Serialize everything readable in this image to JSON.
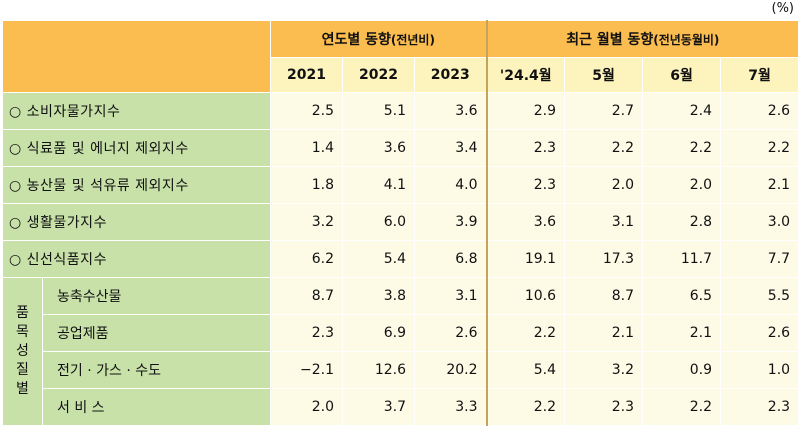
{
  "unit": "(%)",
  "headers": {
    "annual_title": "연도별 동향",
    "annual_sub": "(전년비)",
    "monthly_title": "최근 월별 동향",
    "monthly_sub": "(전년동월비)",
    "columns": [
      "2021",
      "2022",
      "2023",
      "'24.4월",
      "5월",
      "6월",
      "7월"
    ]
  },
  "rows": [
    {
      "label": "○ 소비자물가지수",
      "values": [
        "2.5",
        "5.1",
        "3.6",
        "2.9",
        "2.7",
        "2.4",
        "2.6"
      ]
    },
    {
      "label": "○ 식료품 및 에너지 제외지수",
      "values": [
        "1.4",
        "3.6",
        "3.4",
        "2.3",
        "2.2",
        "2.2",
        "2.2"
      ]
    },
    {
      "label": "○ 농산물 및 석유류 제외지수",
      "values": [
        "1.8",
        "4.1",
        "4.0",
        "2.3",
        "2.0",
        "2.0",
        "2.1"
      ]
    },
    {
      "label": "○ 생활물가지수",
      "values": [
        "3.2",
        "6.0",
        "3.9",
        "3.6",
        "3.1",
        "2.8",
        "3.0"
      ]
    },
    {
      "label": "○ 신선식품지수",
      "values": [
        "6.2",
        "5.4",
        "6.8",
        "19.1",
        "17.3",
        "11.7",
        "7.7"
      ]
    }
  ],
  "group": {
    "label_chars": [
      "품",
      "목",
      "성",
      "질",
      "별"
    ],
    "rows": [
      {
        "label": "농축수산물",
        "values": [
          "8.7",
          "3.8",
          "3.1",
          "10.6",
          "8.7",
          "6.5",
          "5.5"
        ]
      },
      {
        "label": "공업제품",
        "values": [
          "2.3",
          "6.9",
          "2.6",
          "2.2",
          "2.1",
          "2.1",
          "2.6"
        ]
      },
      {
        "label": "전기 · 가스 · 수도",
        "values": [
          "−2.1",
          "12.6",
          "20.2",
          "5.4",
          "3.2",
          "0.9",
          "1.0"
        ]
      },
      {
        "label": "서 비 스",
        "values": [
          "2.0",
          "3.7",
          "3.3",
          "2.2",
          "2.3",
          "2.2",
          "2.3"
        ]
      }
    ]
  }
}
